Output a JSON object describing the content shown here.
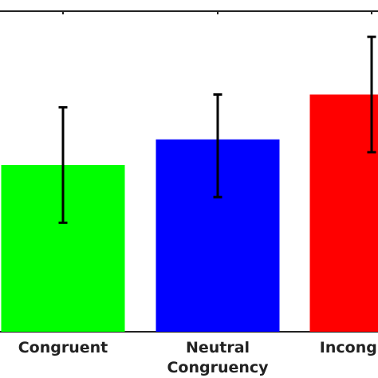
{
  "chart_data": {
    "type": "bar",
    "categories": [
      "Congruent",
      "Neutral\nCongruency",
      "Incongruent"
    ],
    "values": [
      0.56,
      0.6,
      0.67
    ],
    "error_low": [
      0.47,
      0.51,
      0.58
    ],
    "error_high": [
      0.65,
      0.67,
      0.76
    ],
    "colors": [
      "#00ff00",
      "#0000ff",
      "#ff0000"
    ],
    "ylim": [
      0.3,
      0.8
    ],
    "grid": false,
    "title": "",
    "xlabel": "",
    "ylabel": ""
  }
}
